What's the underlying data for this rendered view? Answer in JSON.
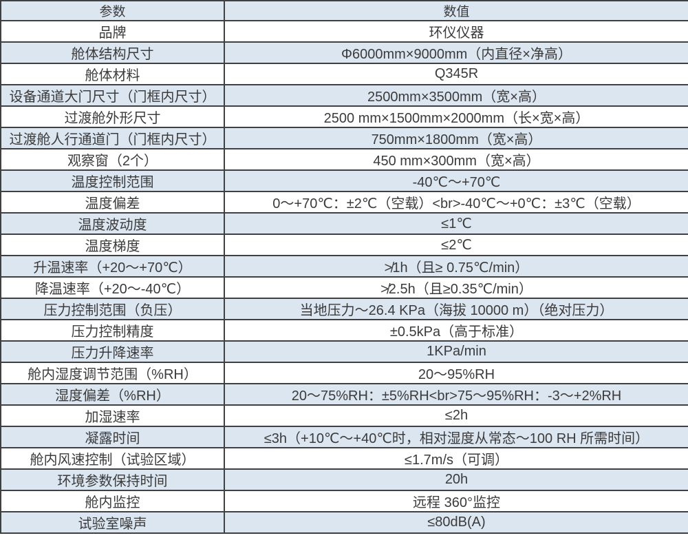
{
  "colors": {
    "stripe_blue": "#dce6f1",
    "border": "#404040",
    "text": "#3b3b3b"
  },
  "header": {
    "param": "参数",
    "value": "数值"
  },
  "rows": [
    {
      "param": "品牌",
      "value": "环仪仪器"
    },
    {
      "param": "舱体结构尺寸",
      "value": "Φ6000mm×9000mm（内直径×净高）"
    },
    {
      "param": "舱体材料",
      "value": "Q345R"
    },
    {
      "param": "设备通道大门尺寸（门框内尺寸）",
      "value": "2500mm×3500mm（宽×高）"
    },
    {
      "param": "过渡舱外形尺寸",
      "value": "2500 mm×1500mm×2000mm（长×宽×高）"
    },
    {
      "param": "过渡舱人行通道门（门框内尺寸）",
      "value": "750mm×1800mm（宽×高）"
    },
    {
      "param": "观察窗（2个）",
      "value": "450 mm×300mm（宽×高）"
    },
    {
      "param": "温度控制范围",
      "value": "-40℃～+70℃"
    },
    {
      "param": "温度偏差",
      "value": "0～+70℃：±2℃（空载）<br>-40℃～+0℃：±3℃（空载）"
    },
    {
      "param": "温度波动度",
      "value": "≤1℃"
    },
    {
      "param": "温度梯度",
      "value": "≤2℃"
    },
    {
      "param": "升温速率（+20～+70℃）",
      "value": "≯1h（且≥ 0.75℃/min）"
    },
    {
      "param": "降温速率（+20～-40℃）",
      "value": "≯2.5h（且≥0.35℃/min）"
    },
    {
      "param": "压力控制范围（负压）",
      "value": "当地压力～26.4 KPa（海拔 10000 m）（绝对压力）"
    },
    {
      "param": "压力控制精度",
      "value": "±0.5kPa（高于标准）"
    },
    {
      "param": "压力升降速率",
      "value": "1KPa/min"
    },
    {
      "param": "舱内湿度调节范围（%RH）",
      "value": "20～95%RH"
    },
    {
      "param": "湿度偏差（%RH）",
      "value": "20～75%RH：±5%RH<br>75～95%RH：-3～+2%RH"
    },
    {
      "param": "加湿速率",
      "value": "≤2h"
    },
    {
      "param": "凝露时间",
      "value": "≤3h（+10℃～+40℃时，相对湿度从常态～100 RH 所需时间）"
    },
    {
      "param": "舱内风速控制（试验区域）",
      "value": "≤1.7m/s（可调）"
    },
    {
      "param": "环境参数保持时间",
      "value": "20h"
    },
    {
      "param": "舱内监控",
      "value": "远程 360°监控"
    },
    {
      "param": "试验室噪声",
      "value": "≤80dB(A)"
    }
  ]
}
